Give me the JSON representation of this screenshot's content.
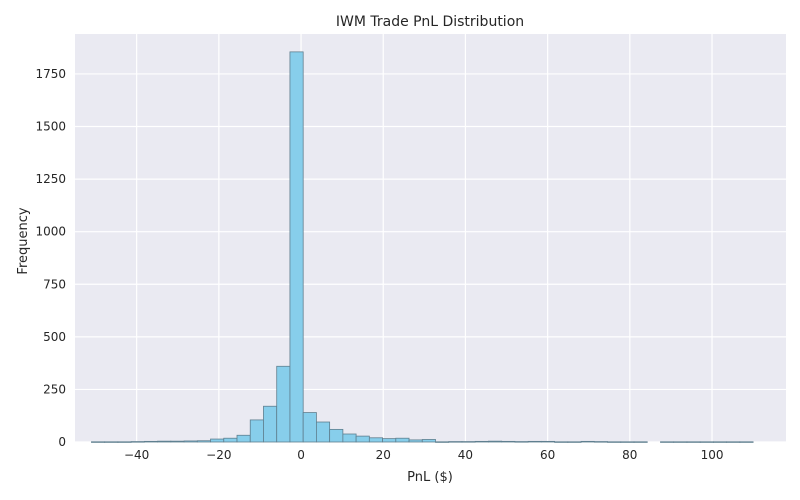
{
  "chart_data": {
    "type": "bar",
    "title": "IWM Trade PnL Distribution",
    "xlabel": "PnL ($)",
    "ylabel": "Frequency",
    "xlim": [
      -55,
      118
    ],
    "ylim": [
      0,
      1940
    ],
    "x_ticks": [
      -40,
      -20,
      0,
      20,
      40,
      60,
      80,
      100
    ],
    "x_tick_labels": [
      "−40",
      "−20",
      "0",
      "20",
      "40",
      "60",
      "80",
      "100"
    ],
    "y_ticks": [
      0,
      250,
      500,
      750,
      1000,
      1250,
      1500,
      1750
    ],
    "y_tick_labels": [
      "0",
      "250",
      "500",
      "750",
      "1000",
      "1250",
      "1500",
      "1750"
    ],
    "grid": true,
    "bar_color": "#87ceeb",
    "edge_color": "#5f7f8f",
    "background_color": "#eaeaf2",
    "bin_start": -51,
    "bin_width": 3.22,
    "counts": [
      1,
      1,
      1,
      2,
      3,
      4,
      4,
      5,
      6,
      14,
      18,
      32,
      105,
      170,
      360,
      1855,
      140,
      95,
      60,
      38,
      28,
      20,
      16,
      18,
      10,
      12,
      1,
      2,
      2,
      3,
      4,
      3,
      2,
      3,
      3,
      1,
      1,
      3,
      2,
      1,
      1,
      1,
      0,
      1,
      1,
      1,
      1,
      1,
      1,
      1
    ]
  }
}
